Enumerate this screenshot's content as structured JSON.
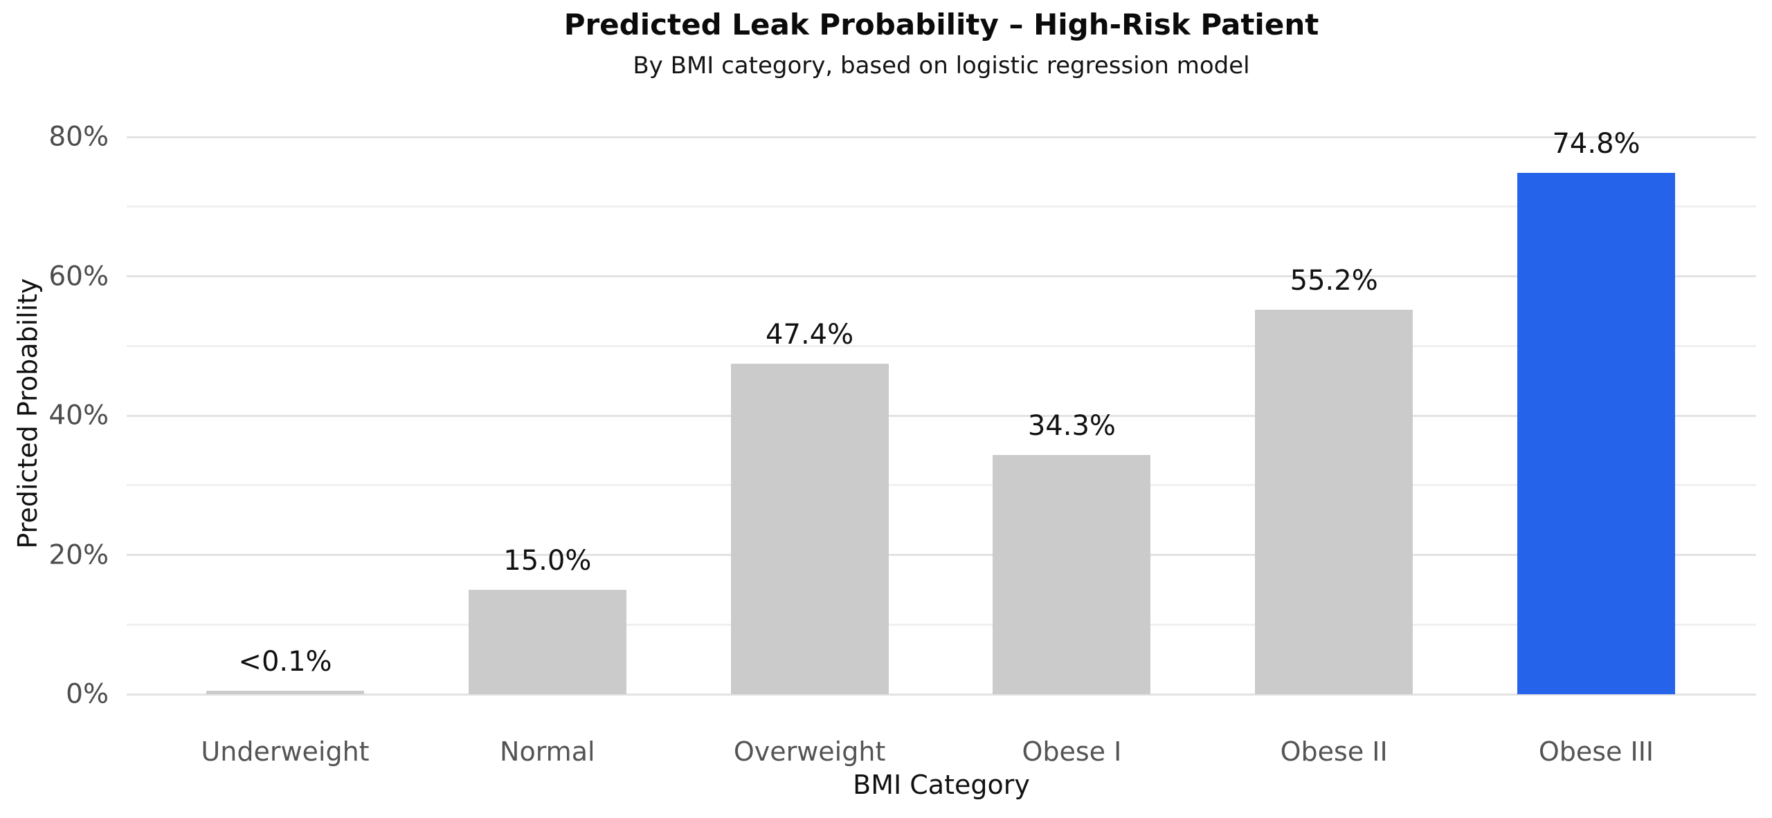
{
  "chart_data": {
    "type": "bar",
    "title": "Predicted Leak Probability – High-Risk Patient",
    "subtitle": "By BMI category, based on logistic regression model",
    "xlabel": "BMI Category",
    "ylabel": "Predicted Probability",
    "categories": [
      "Underweight",
      "Normal",
      "Overweight",
      "Obese I",
      "Obese II",
      "Obese III"
    ],
    "values": [
      0.1,
      15.0,
      47.4,
      34.3,
      55.2,
      74.8
    ],
    "value_labels": [
      "<0.1%",
      "15.0%",
      "47.4%",
      "34.3%",
      "55.2%",
      "74.8%"
    ],
    "ylim": [
      0,
      80
    ],
    "ytick_step": 20,
    "minor_grid_step": 10,
    "ytick_labels": [
      "0%",
      "20%",
      "40%",
      "60%",
      "80%"
    ],
    "grid": true,
    "legend": "none",
    "highlight_category": "Obese III",
    "highlight_index": 5
  },
  "colors": {
    "bar_default": "#cbcbcb",
    "bar_highlight": "#2563eb",
    "grid_major": "#e3e3e3",
    "grid_minor": "#f0f0f0",
    "ytick_text": "#4d4d4d",
    "xtick_text": "#545454",
    "text": "#111111",
    "background": "#ffffff"
  }
}
